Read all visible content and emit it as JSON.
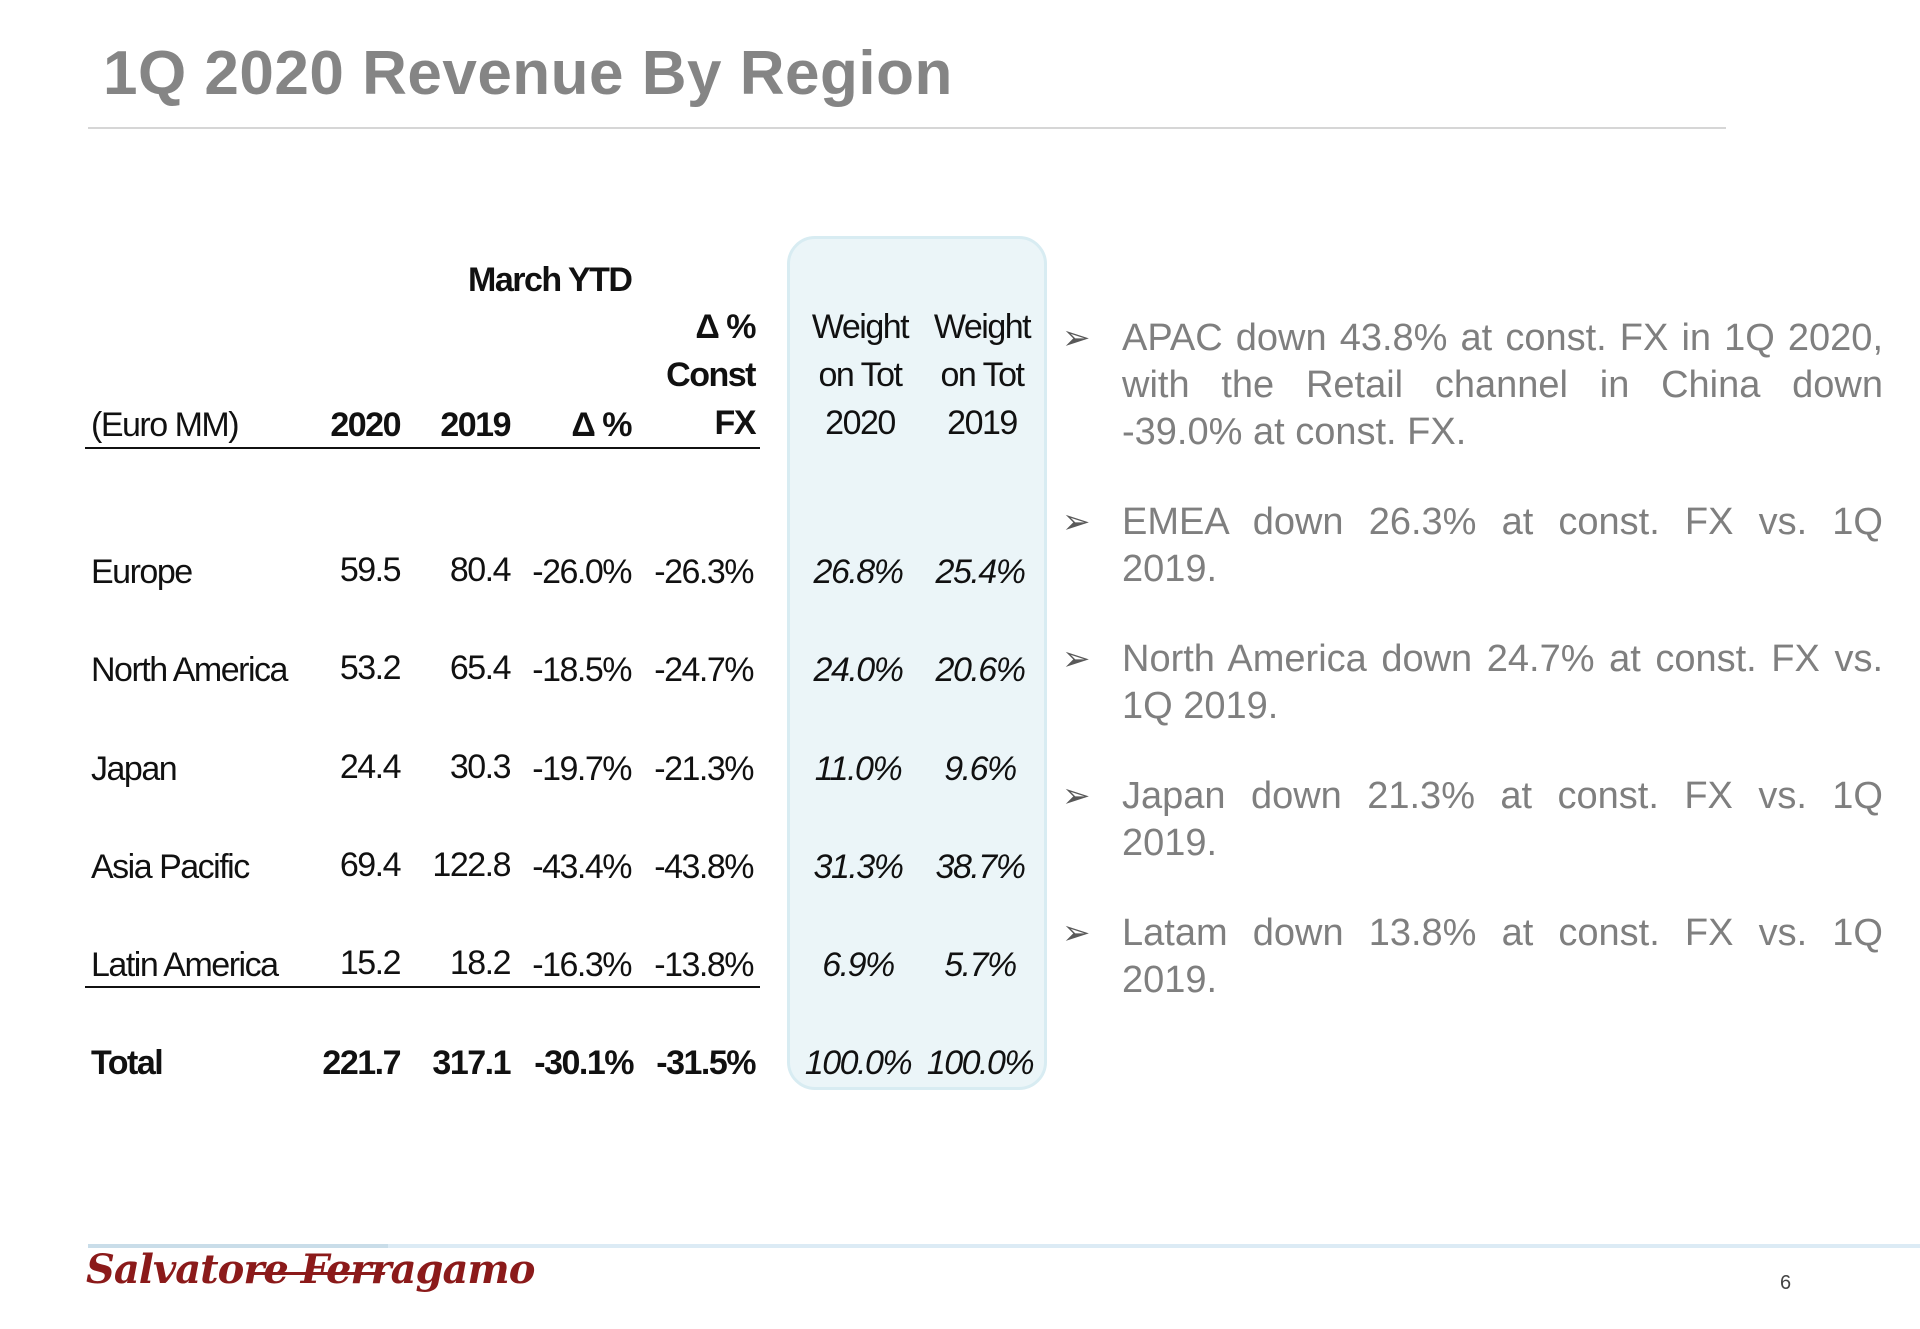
{
  "slide": {
    "title": "1Q 2020 Revenue By Region",
    "page_number": "6",
    "logo_text": "Salvatore Ferragamo"
  },
  "table": {
    "group_header": "March YTD",
    "unit_label": "(Euro MM)",
    "headers": {
      "y2020": "2020",
      "y2019": "2019",
      "delta": "Δ %",
      "delta_fx_line1": "Δ %",
      "delta_fx_line2": "Const",
      "delta_fx_line3": "FX",
      "w2020_line1": "Weight",
      "w2020_line2": "on Tot",
      "w2020_line3": "2020",
      "w2019_line1": "Weight",
      "w2019_line2": "on Tot",
      "w2019_line3": "2019"
    },
    "rows": [
      {
        "region": "Europe",
        "y2020": "59.5",
        "y2019": "80.4",
        "delta": "-26.0%",
        "delta_fx": "-26.3%",
        "w2020": "26.8%",
        "w2019": "25.4%"
      },
      {
        "region": "North America",
        "y2020": "53.2",
        "y2019": "65.4",
        "delta": "-18.5%",
        "delta_fx": "-24.7%",
        "w2020": "24.0%",
        "w2019": "20.6%"
      },
      {
        "region": "Japan",
        "y2020": "24.4",
        "y2019": "30.3",
        "delta": "-19.7%",
        "delta_fx": "-21.3%",
        "w2020": "11.0%",
        "w2019": "9.6%"
      },
      {
        "region": "Asia Pacific",
        "y2020": "69.4",
        "y2019": "122.8",
        "delta": "-43.4%",
        "delta_fx": "-43.8%",
        "w2020": "31.3%",
        "w2019": "38.7%"
      },
      {
        "region": "Latin America",
        "y2020": "15.2",
        "y2019": "18.2",
        "delta": "-16.3%",
        "delta_fx": "-13.8%",
        "w2020": "6.9%",
        "w2019": "5.7%"
      }
    ],
    "total": {
      "region": "Total",
      "y2020": "221.7",
      "y2019": "317.1",
      "delta": "-30.1%",
      "delta_fx": "-31.5%",
      "w2020": "100.0%",
      "w2019": "100.0%"
    }
  },
  "bullets": [
    {
      "icon": "arrow-bullet-icon",
      "text": "APAC down 43.8% at const. FX in 1Q 2020, with the  Retail channel in China down -39.0% at const. FX."
    },
    {
      "icon": "arrow-bullet-icon",
      "text": "EMEA down 26.3% at const. FX vs. 1Q 2019."
    },
    {
      "icon": "arrow-bullet-icon",
      "text": "North America down 24.7% at const. FX vs. 1Q 2019."
    },
    {
      "icon": "arrow-bullet-icon",
      "text": "Japan down 21.3% at const. FX vs. 1Q 2019."
    },
    {
      "icon": "arrow-bullet-icon",
      "text": "Latam down 13.8% at const. FX vs. 1Q 2019."
    }
  ],
  "colors": {
    "title": "#858585",
    "bullet_text": "#7f7f7f",
    "highlight_fill": "#ebf5f8",
    "logo": "#8b1a1a"
  }
}
